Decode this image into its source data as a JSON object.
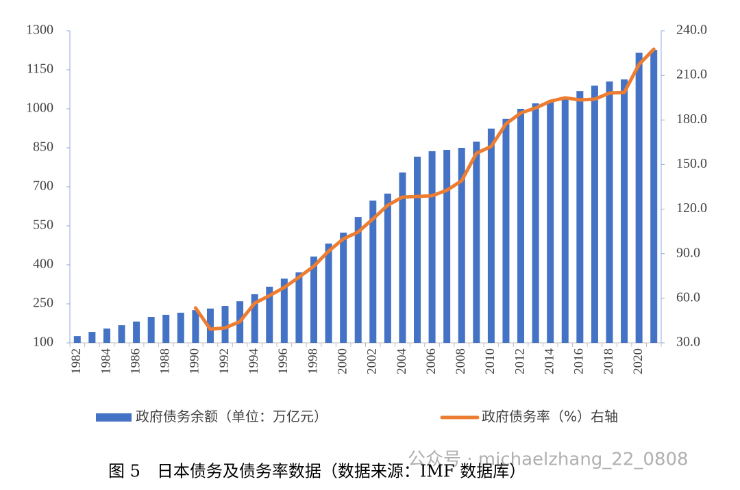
{
  "chart_data": {
    "type": "bar_line",
    "categories": [
      "1982",
      null,
      "1984",
      null,
      "1986",
      null,
      "1988",
      null,
      "1990",
      null,
      "1992",
      null,
      "1994",
      null,
      "1996",
      null,
      "1998",
      null,
      "2000",
      null,
      "2002",
      null,
      "2004",
      null,
      "2006",
      null,
      "2008",
      null,
      "2010",
      null,
      "2012",
      null,
      "2014",
      null,
      "2016",
      null,
      "2018",
      null,
      "2020",
      null
    ],
    "series": [
      {
        "name": "政府债务余额（单位：万亿元）",
        "type": "bar",
        "color": "#4472c4",
        "values": [
          126,
          142,
          155,
          168,
          182,
          200,
          208,
          216,
          226,
          232,
          242,
          260,
          287,
          316,
          347,
          371,
          432,
          482,
          524,
          584,
          647,
          674,
          755,
          816,
          837,
          842,
          850,
          874,
          924,
          961,
          1000,
          1021,
          1032,
          1045,
          1068,
          1089,
          1105,
          1113,
          1216,
          1226
        ]
      },
      {
        "name": "政府债务率（%）右轴",
        "type": "line",
        "axis": "y2",
        "color": "#ed7d31",
        "values": [
          null,
          null,
          null,
          null,
          null,
          null,
          null,
          null,
          53.5,
          39.2,
          40.1,
          44.3,
          56.7,
          61.8,
          67.3,
          74.2,
          81.6,
          91.7,
          100.0,
          104.6,
          113.4,
          122.6,
          128.1,
          128.5,
          129.0,
          132.7,
          139.1,
          157.6,
          162.2,
          177.4,
          184.7,
          188.0,
          192.6,
          194.9,
          193.5,
          194.0,
          198.1,
          198.5,
          217.4,
          227.6
        ]
      }
    ],
    "ylim": [
      100,
      1300
    ],
    "yticks": [
      100,
      250,
      400,
      550,
      700,
      850,
      1000,
      1150,
      1300
    ],
    "y2lim": [
      30,
      240
    ],
    "y2ticks": [
      {
        "value": 30,
        "label": "30.0"
      },
      {
        "value": 60,
        "label": "60.0"
      },
      {
        "value": 90,
        "label": "90.0"
      },
      {
        "value": 120,
        "label": "120.0"
      },
      {
        "value": 150,
        "label": "150.0"
      },
      {
        "value": 180,
        "label": "180.0"
      },
      {
        "value": 210,
        "label": "210.0"
      },
      {
        "value": 240,
        "label": "240.0"
      }
    ],
    "legend": "bottom",
    "caption": "图 5　日本债务及债务率数据（数据来源：IMF 数据库）",
    "watermark": "公众号 · michaelzhang_22_0808"
  }
}
